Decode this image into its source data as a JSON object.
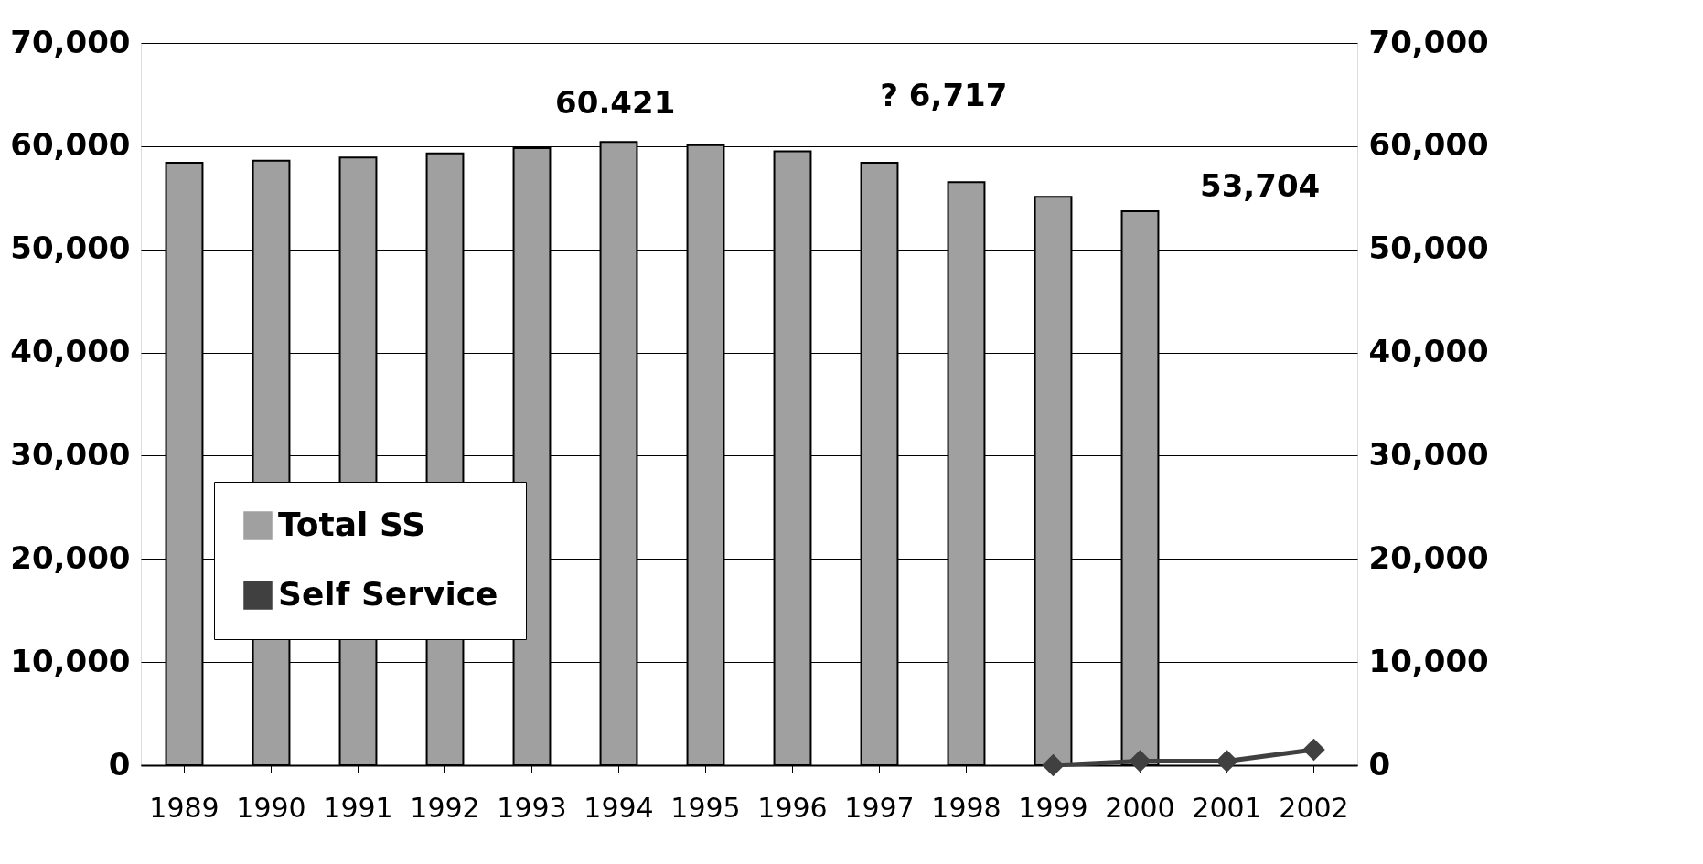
{
  "chart_data": {
    "type": "bar",
    "categories": [
      "1989",
      "1990",
      "1991",
      "1992",
      "1993",
      "1994",
      "1995",
      "1996",
      "1997",
      "1998",
      "1999",
      "2000",
      "2001",
      "2002"
    ],
    "series": [
      {
        "name": "Total SS",
        "color": "#a0a0a0",
        "values": [
          58400,
          58600,
          58900,
          59300,
          59800,
          60400,
          60100,
          59500,
          58400,
          56500,
          55100,
          53700,
          null,
          null
        ]
      },
      {
        "name": "Self Service",
        "type": "line",
        "axis": "y2",
        "color": "#404040",
        "marker": "diamond",
        "values": [
          null,
          null,
          null,
          null,
          null,
          null,
          null,
          null,
          null,
          null,
          0,
          400,
          400,
          1500
        ]
      }
    ],
    "ylim": [
      0,
      70000
    ],
    "yticks": [
      {
        "value": 0,
        "label": "0"
      },
      {
        "value": 10000,
        "label": "10,000"
      },
      {
        "value": 20000,
        "label": "20,000"
      },
      {
        "value": 30000,
        "label": "30,000"
      },
      {
        "value": 40000,
        "label": "40,000"
      },
      {
        "value": 50000,
        "label": "50,000"
      },
      {
        "value": 60000,
        "label": "60,000"
      },
      {
        "value": 70000,
        "label": "70,000"
      }
    ],
    "y2lim": [
      0,
      70000
    ],
    "y2ticks": [
      {
        "value": 0,
        "label": "0"
      },
      {
        "value": 10000,
        "label": "10,000"
      },
      {
        "value": 20000,
        "label": "20,000"
      },
      {
        "value": 30000,
        "label": "30,000"
      },
      {
        "value": 40000,
        "label": "40,000"
      },
      {
        "value": 50000,
        "label": "50,000"
      },
      {
        "value": 60000,
        "label": "60,000"
      },
      {
        "value": 70000,
        "label": "70,000"
      }
    ],
    "annotations": [
      "60.421",
      "? 6,717",
      "53,704"
    ],
    "grid": "y",
    "legend": "bottom left"
  }
}
